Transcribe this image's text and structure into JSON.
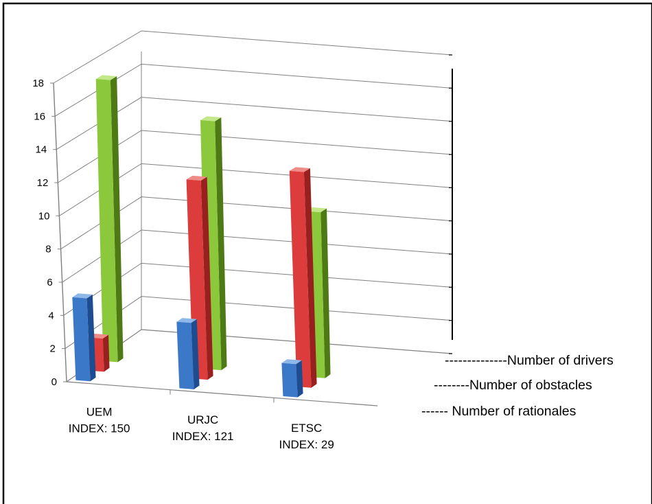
{
  "chart_data": {
    "type": "bar",
    "categories": [
      {
        "name": "UEM",
        "index_label": "INDEX: 150"
      },
      {
        "name": "URJC",
        "index_label": "INDEX: 121"
      },
      {
        "name": "ETSC",
        "index_label": "INDEX:  29"
      }
    ],
    "series": [
      {
        "name": "------ Number of rationales",
        "values": [
          5,
          4,
          2
        ]
      },
      {
        "name": "--------Number of obstacles",
        "values": [
          2,
          12,
          13
        ]
      },
      {
        "name": "--------------Number of drivers",
        "values": [
          17,
          15,
          10
        ]
      }
    ],
    "y_ticks": [
      "0",
      "2",
      "4",
      "6",
      "8",
      "10",
      "12",
      "14",
      "16",
      "18"
    ],
    "ylim": [
      0,
      18
    ],
    "grid": true,
    "legend_position": "bottom-right",
    "colors": {
      "series": [
        "#3c78c8",
        "#dc3c3c",
        "#8cc83c"
      ],
      "series_dark": [
        "#1e4c90",
        "#98201e",
        "#4e7a16"
      ],
      "series_light": [
        "#8fb8ea",
        "#f08c88",
        "#c2e88a"
      ],
      "frame": "#000000",
      "grid": "#7f7f7f"
    }
  }
}
